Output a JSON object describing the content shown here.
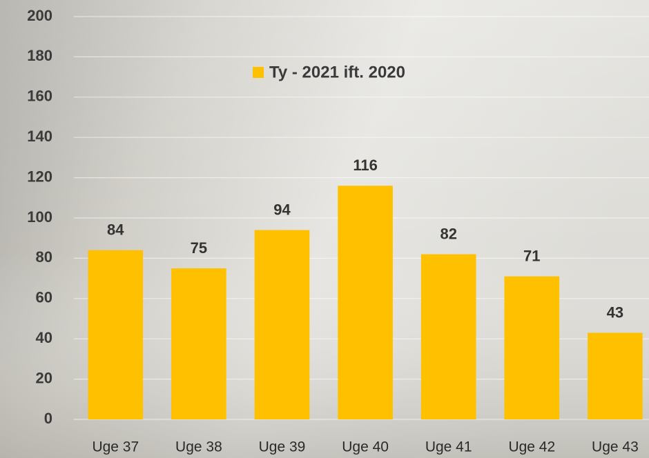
{
  "chart_data": {
    "type": "bar",
    "categories": [
      "Uge 37",
      "Uge 38",
      "Uge 39",
      "Uge 40",
      "Uge 41",
      "Uge 42",
      "Uge 43"
    ],
    "series": [
      {
        "name": "Ty - 2021 ift. 2020",
        "color": "#ffc000",
        "values": [
          84,
          75,
          94,
          116,
          82,
          71,
          43
        ]
      }
    ],
    "ylim": [
      0,
      200
    ],
    "yticks": [
      0,
      20,
      40,
      60,
      80,
      100,
      120,
      140,
      160,
      180,
      200
    ],
    "grid": true,
    "legend": "top"
  }
}
